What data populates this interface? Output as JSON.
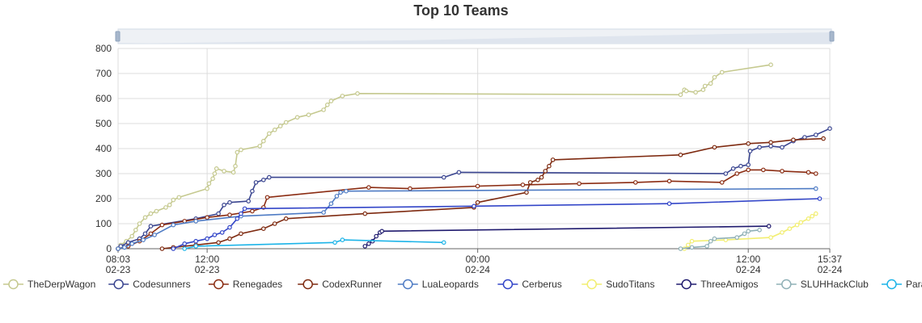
{
  "chart_data": {
    "type": "line",
    "title": "Top 10 Teams",
    "xlabel": "",
    "ylabel": "",
    "ylim": [
      0,
      800
    ],
    "y_ticks": [
      0,
      100,
      200,
      300,
      400,
      500,
      600,
      700,
      800
    ],
    "x_range": [
      "02-23 08:03",
      "02-24 15:37"
    ],
    "x_ticks": [
      {
        "time": "02-23 08:03",
        "line1": "08:03",
        "line2": "02-23"
      },
      {
        "time": "02-23 12:00",
        "line1": "12:00",
        "line2": "02-23"
      },
      {
        "time": "02-24 00:00",
        "line1": "00:00",
        "line2": "02-24"
      },
      {
        "time": "02-24 12:00",
        "line1": "12:00",
        "line2": "02-24"
      },
      {
        "time": "02-24 15:37",
        "line1": "15:37",
        "line2": "02-24"
      }
    ],
    "grid": true,
    "legend_position": "bottom",
    "data_zoom_slider": true,
    "series": [
      {
        "name": "TheDerpWagon",
        "color": "#c5c98f",
        "points": [
          [
            "02-23 08:03",
            0
          ],
          [
            "02-23 08:10",
            15
          ],
          [
            "02-23 08:25",
            30
          ],
          [
            "02-23 08:40",
            50
          ],
          [
            "02-23 08:50",
            75
          ],
          [
            "02-23 09:00",
            100
          ],
          [
            "02-23 09:15",
            125
          ],
          [
            "02-23 09:30",
            140
          ],
          [
            "02-23 09:45",
            150
          ],
          [
            "02-23 10:10",
            165
          ],
          [
            "02-23 10:20",
            175
          ],
          [
            "02-23 10:30",
            195
          ],
          [
            "02-23 10:45",
            205
          ],
          [
            "02-23 12:00",
            240
          ],
          [
            "02-23 12:05",
            260
          ],
          [
            "02-23 12:15",
            280
          ],
          [
            "02-23 12:20",
            300
          ],
          [
            "02-23 12:25",
            320
          ],
          [
            "02-23 12:45",
            310
          ],
          [
            "02-23 13:10",
            305
          ],
          [
            "02-23 13:15",
            330
          ],
          [
            "02-23 13:20",
            385
          ],
          [
            "02-23 13:30",
            395
          ],
          [
            "02-23 14:20",
            410
          ],
          [
            "02-23 14:30",
            430
          ],
          [
            "02-23 14:45",
            460
          ],
          [
            "02-23 15:00",
            475
          ],
          [
            "02-23 15:15",
            490
          ],
          [
            "02-23 15:30",
            505
          ],
          [
            "02-23 16:00",
            525
          ],
          [
            "02-23 16:30",
            535
          ],
          [
            "02-23 17:10",
            555
          ],
          [
            "02-23 17:20",
            575
          ],
          [
            "02-23 17:30",
            590
          ],
          [
            "02-23 18:00",
            610
          ],
          [
            "02-23 18:40",
            620
          ],
          [
            "02-24 09:00",
            615
          ],
          [
            "02-24 09:10",
            635
          ],
          [
            "02-24 09:15",
            630
          ],
          [
            "02-24 09:40",
            625
          ],
          [
            "02-24 10:00",
            635
          ],
          [
            "02-24 10:05",
            650
          ],
          [
            "02-24 10:20",
            660
          ],
          [
            "02-24 10:30",
            685
          ],
          [
            "02-24 10:50",
            705
          ],
          [
            "02-24 13:00",
            735
          ]
        ]
      },
      {
        "name": "Codesunners",
        "color": "#3a4590",
        "points": [
          [
            "02-23 08:03",
            0
          ],
          [
            "02-23 08:10",
            10
          ],
          [
            "02-23 08:30",
            25
          ],
          [
            "02-23 09:00",
            40
          ],
          [
            "02-23 09:15",
            60
          ],
          [
            "02-23 09:30",
            90
          ],
          [
            "02-23 11:30",
            120
          ],
          [
            "02-23 12:30",
            140
          ],
          [
            "02-23 12:45",
            175
          ],
          [
            "02-23 13:00",
            185
          ],
          [
            "02-23 13:50",
            190
          ],
          [
            "02-23 14:00",
            230
          ],
          [
            "02-23 14:10",
            265
          ],
          [
            "02-23 14:30",
            275
          ],
          [
            "02-23 14:45",
            285
          ],
          [
            "02-23 22:30",
            285
          ],
          [
            "02-23 23:10",
            305
          ],
          [
            "02-24 11:00",
            300
          ],
          [
            "02-24 11:20",
            320
          ],
          [
            "02-24 11:40",
            330
          ],
          [
            "02-24 12:00",
            335
          ],
          [
            "02-24 12:05",
            390
          ],
          [
            "02-24 12:30",
            405
          ],
          [
            "02-24 13:00",
            410
          ],
          [
            "02-24 13:30",
            405
          ],
          [
            "02-24 14:00",
            430
          ],
          [
            "02-24 14:30",
            445
          ],
          [
            "02-24 15:00",
            455
          ],
          [
            "02-24 15:37",
            480
          ]
        ]
      },
      {
        "name": "Renegades",
        "color": "#8b2c12",
        "points": [
          [
            "02-23 08:03",
            0
          ],
          [
            "02-23 08:30",
            10
          ],
          [
            "02-23 09:00",
            30
          ],
          [
            "02-23 09:30",
            60
          ],
          [
            "02-23 10:00",
            95
          ],
          [
            "02-23 11:00",
            110
          ],
          [
            "02-23 12:00",
            125
          ],
          [
            "02-23 13:00",
            135
          ],
          [
            "02-23 14:00",
            150
          ],
          [
            "02-23 14:30",
            165
          ],
          [
            "02-23 14:40",
            205
          ],
          [
            "02-23 19:10",
            245
          ],
          [
            "02-23 21:00",
            240
          ],
          [
            "02-24 00:00",
            250
          ],
          [
            "02-24 02:00",
            255
          ],
          [
            "02-24 04:30",
            260
          ],
          [
            "02-24 07:00",
            265
          ],
          [
            "02-24 08:30",
            270
          ],
          [
            "02-24 10:50",
            265
          ],
          [
            "02-24 11:30",
            300
          ],
          [
            "02-24 12:00",
            315
          ],
          [
            "02-24 12:40",
            315
          ],
          [
            "02-24 13:30",
            310
          ],
          [
            "02-24 14:40",
            305
          ],
          [
            "02-24 15:00",
            300
          ]
        ]
      },
      {
        "name": "CodexRunner",
        "color": "#7e2a10",
        "points": [
          [
            "02-23 10:00",
            0
          ],
          [
            "02-23 10:30",
            5
          ],
          [
            "02-23 11:30",
            15
          ],
          [
            "02-23 12:30",
            25
          ],
          [
            "02-23 13:00",
            40
          ],
          [
            "02-23 13:30",
            60
          ],
          [
            "02-23 14:30",
            80
          ],
          [
            "02-23 15:00",
            100
          ],
          [
            "02-23 15:30",
            120
          ],
          [
            "02-23 19:00",
            140
          ],
          [
            "02-23 23:50",
            165
          ],
          [
            "02-24 00:00",
            185
          ],
          [
            "02-24 02:10",
            225
          ],
          [
            "02-24 02:20",
            265
          ],
          [
            "02-24 02:40",
            275
          ],
          [
            "02-24 02:50",
            285
          ],
          [
            "02-24 03:00",
            310
          ],
          [
            "02-24 03:10",
            330
          ],
          [
            "02-24 03:20",
            355
          ],
          [
            "02-24 09:00",
            375
          ],
          [
            "02-24 10:30",
            405
          ],
          [
            "02-24 12:00",
            420
          ],
          [
            "02-24 13:00",
            425
          ],
          [
            "02-24 14:00",
            435
          ],
          [
            "02-24 15:20",
            440
          ]
        ]
      },
      {
        "name": "LuaLeopards",
        "color": "#4e7bc4",
        "points": [
          [
            "02-23 08:03",
            0
          ],
          [
            "02-23 08:20",
            5
          ],
          [
            "02-23 08:40",
            20
          ],
          [
            "02-23 09:10",
            35
          ],
          [
            "02-23 09:40",
            55
          ],
          [
            "02-23 10:30",
            95
          ],
          [
            "02-23 11:30",
            110
          ],
          [
            "02-23 13:30",
            130
          ],
          [
            "02-23 17:10",
            145
          ],
          [
            "02-23 17:30",
            180
          ],
          [
            "02-23 17:45",
            210
          ],
          [
            "02-23 17:55",
            225
          ],
          [
            "02-23 18:10",
            230
          ],
          [
            "02-24 15:00",
            240
          ]
        ]
      },
      {
        "name": "Cerberus",
        "color": "#3245c8",
        "points": [
          [
            "02-23 10:30",
            0
          ],
          [
            "02-23 11:00",
            20
          ],
          [
            "02-23 11:30",
            30
          ],
          [
            "02-23 12:00",
            40
          ],
          [
            "02-23 12:20",
            55
          ],
          [
            "02-23 12:40",
            65
          ],
          [
            "02-23 13:00",
            85
          ],
          [
            "02-23 13:20",
            120
          ],
          [
            "02-23 13:30",
            140
          ],
          [
            "02-23 13:40",
            160
          ],
          [
            "02-23 23:50",
            170
          ],
          [
            "02-24 08:30",
            180
          ],
          [
            "02-24 15:10",
            200
          ]
        ]
      },
      {
        "name": "SudoTitans",
        "color": "#f2ee70",
        "points": [
          [
            "02-24 09:10",
            0
          ],
          [
            "02-24 09:20",
            15
          ],
          [
            "02-24 09:30",
            30
          ],
          [
            "02-24 11:00",
            35
          ],
          [
            "02-24 13:00",
            45
          ],
          [
            "02-24 13:30",
            65
          ],
          [
            "02-24 13:50",
            80
          ],
          [
            "02-24 14:10",
            95
          ],
          [
            "02-24 14:20",
            105
          ],
          [
            "02-24 14:40",
            120
          ],
          [
            "02-24 14:50",
            130
          ],
          [
            "02-24 15:00",
            140
          ]
        ]
      },
      {
        "name": "ThreeAmigos",
        "color": "#1f1a6e",
        "points": [
          [
            "02-23 19:00",
            10
          ],
          [
            "02-23 19:10",
            20
          ],
          [
            "02-23 19:20",
            30
          ],
          [
            "02-23 19:30",
            50
          ],
          [
            "02-23 19:40",
            65
          ],
          [
            "02-23 19:45",
            70
          ],
          [
            "02-24 12:55",
            90
          ]
        ]
      },
      {
        "name": "SLUHHackClub",
        "color": "#8fb0b6",
        "points": [
          [
            "02-24 09:00",
            0
          ],
          [
            "02-24 09:30",
            5
          ],
          [
            "02-24 10:10",
            10
          ],
          [
            "02-24 10:20",
            30
          ],
          [
            "02-24 10:30",
            40
          ],
          [
            "02-24 11:30",
            45
          ],
          [
            "02-24 11:50",
            60
          ],
          [
            "02-24 12:00",
            70
          ],
          [
            "02-24 12:30",
            75
          ]
        ]
      },
      {
        "name": "Paradoxicals",
        "color": "#1cb4e8",
        "points": [
          [
            "02-23 11:00",
            0
          ],
          [
            "02-23 11:30",
            10
          ],
          [
            "02-23 17:40",
            25
          ],
          [
            "02-23 18:00",
            35
          ],
          [
            "02-23 22:30",
            25
          ]
        ]
      }
    ]
  }
}
